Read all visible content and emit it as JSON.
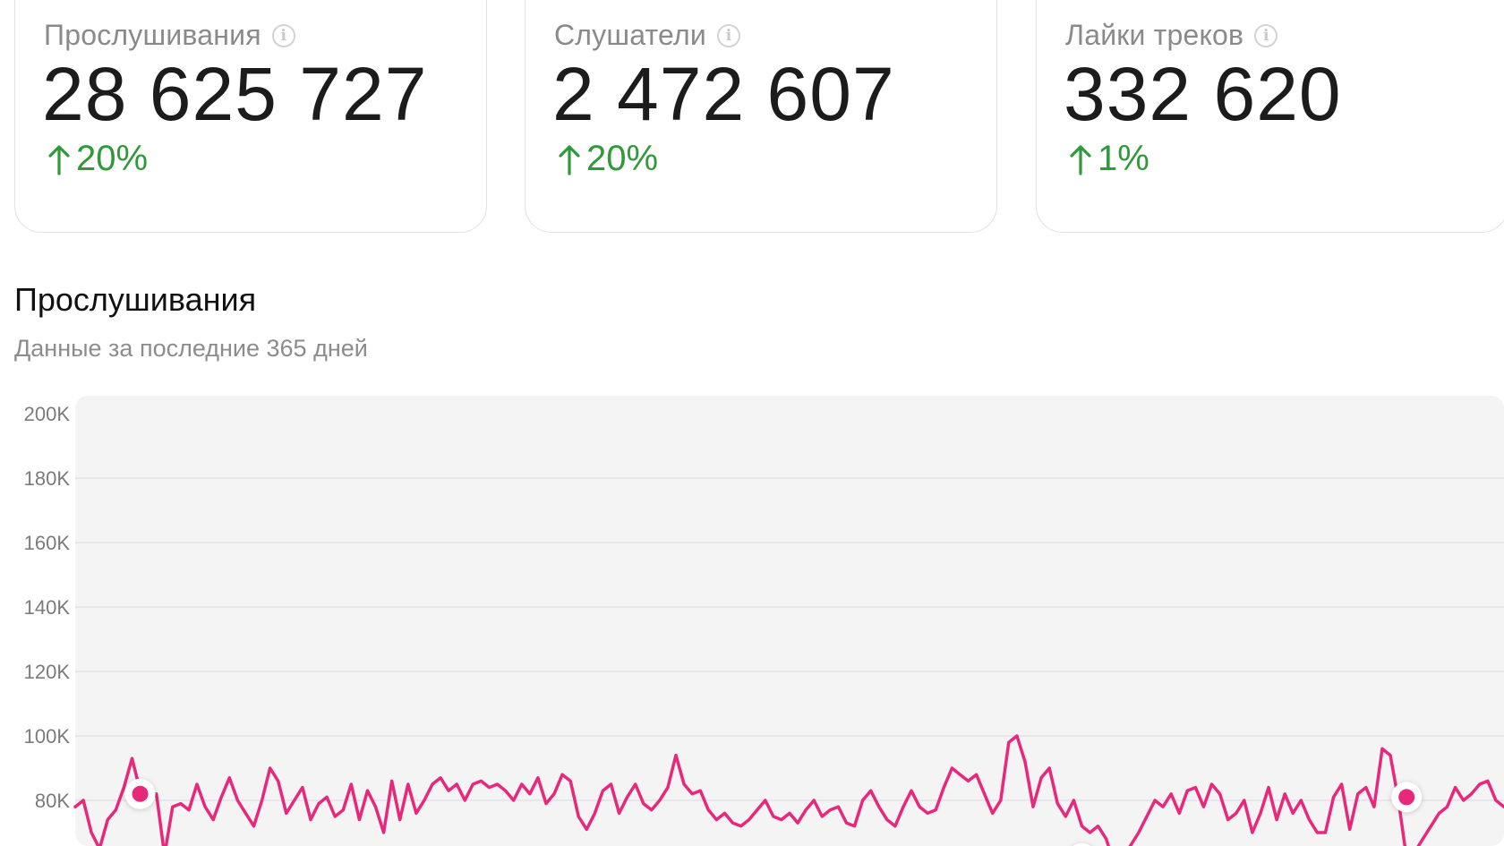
{
  "stats": [
    {
      "label": "Прослушивания",
      "value": "28 625 727",
      "delta": "20%",
      "info_icon": "info-icon",
      "trend_icon": "arrow-up-icon"
    },
    {
      "label": "Слушатели",
      "value": "2 472 607",
      "delta": "20%",
      "info_icon": "info-icon",
      "trend_icon": "arrow-up-icon"
    },
    {
      "label": "Лайки треков",
      "value": "332 620",
      "delta": "1%",
      "info_icon": "info-icon",
      "trend_icon": "arrow-up-icon"
    }
  ],
  "section": {
    "title": "Прослушивания",
    "subtitle": "Данные за последние 365 дней"
  },
  "colors": {
    "line": "#e8287a",
    "positive": "#2f9a3a",
    "plot_bg": "#f4f4f5",
    "grid": "#dedee6"
  },
  "chart_data": {
    "type": "line",
    "y_ticks": [
      "200K",
      "180K",
      "160K",
      "140K",
      "120K",
      "100K",
      "80K"
    ],
    "ylim": [
      60000,
      205000
    ],
    "grid": true,
    "legend": "none",
    "series": [
      {
        "values": [
          78000,
          80000,
          70000,
          65000,
          74000,
          77000,
          84000,
          93000,
          83000,
          80000,
          82000,
          63000,
          78000,
          79000,
          77000,
          85000,
          78000,
          74000,
          81000,
          87000,
          80000,
          76000,
          72000,
          80000,
          90000,
          86000,
          76000,
          80000,
          84000,
          74000,
          79000,
          81000,
          75000,
          77000,
          85000,
          74000,
          83000,
          78000,
          70000,
          86000,
          74000,
          85000,
          76000,
          80000,
          85000,
          87000,
          83000,
          85000,
          80000,
          85000,
          86000,
          84000,
          85000,
          83000,
          80000,
          85000,
          82000,
          87000,
          79000,
          82000,
          88000,
          86000,
          75000,
          71000,
          76000,
          83000,
          85000,
          76000,
          81000,
          85000,
          79000,
          77000,
          80000,
          84000,
          94000,
          85000,
          82000,
          83000,
          77000,
          74000,
          76000,
          73000,
          72000,
          74000,
          77000,
          80000,
          75000,
          74000,
          76000,
          73000,
          77000,
          80000,
          75000,
          77000,
          78000,
          73000,
          72000,
          80000,
          83000,
          78000,
          74000,
          72000,
          78000,
          83000,
          78000,
          76000,
          77000,
          84000,
          90000,
          88000,
          86000,
          88000,
          82000,
          76000,
          80000,
          98000,
          100000,
          92000,
          78000,
          87000,
          90000,
          79000,
          75000,
          80000,
          72000,
          70000,
          72000,
          68000,
          60000,
          62000,
          66000,
          70000,
          75000,
          80000,
          78000,
          82000,
          76000,
          83000,
          84000,
          78000,
          85000,
          82000,
          74000,
          76000,
          80000,
          70000,
          76000,
          84000,
          74000,
          82000,
          76000,
          80000,
          74000,
          70000,
          70000,
          81000,
          85000,
          71000,
          82000,
          84000,
          78000,
          96000,
          94000,
          80000,
          62000,
          64000,
          68000,
          72000,
          76000,
          78000,
          84000,
          80000,
          82000,
          85000,
          86000,
          80000,
          78000
        ]
      }
    ],
    "highlight_points": [
      82000,
      62000,
      81000
    ]
  }
}
